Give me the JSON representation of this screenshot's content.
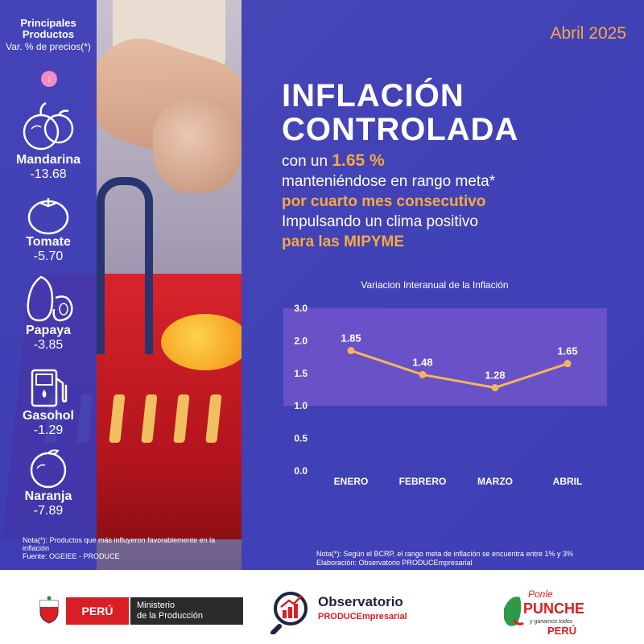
{
  "sidebar": {
    "title": "Principales Productos",
    "subtitle": "Var. % de precios(*)",
    "products": [
      {
        "name": "Mandarina",
        "value": "-13.68",
        "icon": "mandarin-icon"
      },
      {
        "name": "Tomate",
        "value": "-5.70",
        "icon": "tomato-icon"
      },
      {
        "name": "Papaya",
        "value": "-3.85",
        "icon": "papaya-icon"
      },
      {
        "name": "Gasohol",
        "value": "-1.29",
        "icon": "fuel-pump-icon"
      },
      {
        "name": "Naranja",
        "value": "-7.89",
        "icon": "orange-icon"
      }
    ],
    "note": "Nota(*): Productos que más influyeron favorablemente en la inflación",
    "source": "Fuente: OGEIEE - PRODUCE"
  },
  "header": {
    "date": "Abril 2025",
    "title_line1": "INFLACIÓN",
    "title_line2": "CONTROLADA",
    "line1_prefix": "con un ",
    "line1_value": "1.65 %",
    "line2": "manteniéndose en rango meta*",
    "line3": "por cuarto mes consecutivo",
    "line4": "Impulsando un clima positivo",
    "line5": "para las MIPYME"
  },
  "chart_data": {
    "type": "line",
    "title": "Variacion Interanual de la Inflación",
    "categories": [
      "ENERO",
      "FEBRERO",
      "MARZO",
      "ABRIL"
    ],
    "values": [
      1.85,
      1.48,
      1.28,
      1.65
    ],
    "data_labels": [
      "1.85",
      "1.48",
      "1.28",
      "1.65"
    ],
    "yticks": [
      "0.0",
      "0.5",
      "1.0",
      "1.5",
      "2.0",
      "3.0"
    ],
    "ytick_values": [
      0.0,
      0.5,
      1.0,
      1.5,
      2.0,
      3.0
    ],
    "target_band": [
      1,
      3
    ],
    "line_color": "#f7b55a",
    "band_color": "#8b5fd6"
  },
  "notes": {
    "line1": "Nota(*): Según el BCRP, el rango meta de inflación se encuentra entre 1% y 3%",
    "line2": "Elaboración: Observatorio PRODUCEmpresarial"
  },
  "footer": {
    "peru": "PERÚ",
    "ministry_line1": "Ministerio",
    "ministry_line2": "de la Producción",
    "obs_title": "Observatorio",
    "obs_sub": "PRODUCEmpresarial",
    "ponle1": "Ponle",
    "ponle2": "PUNCHE",
    "ponle3": "y ganamos todos",
    "ponle4": "PERÚ"
  },
  "colors": {
    "accent": "#f7a941",
    "panel": "#3e40b6",
    "peru_red": "#d91f26"
  }
}
